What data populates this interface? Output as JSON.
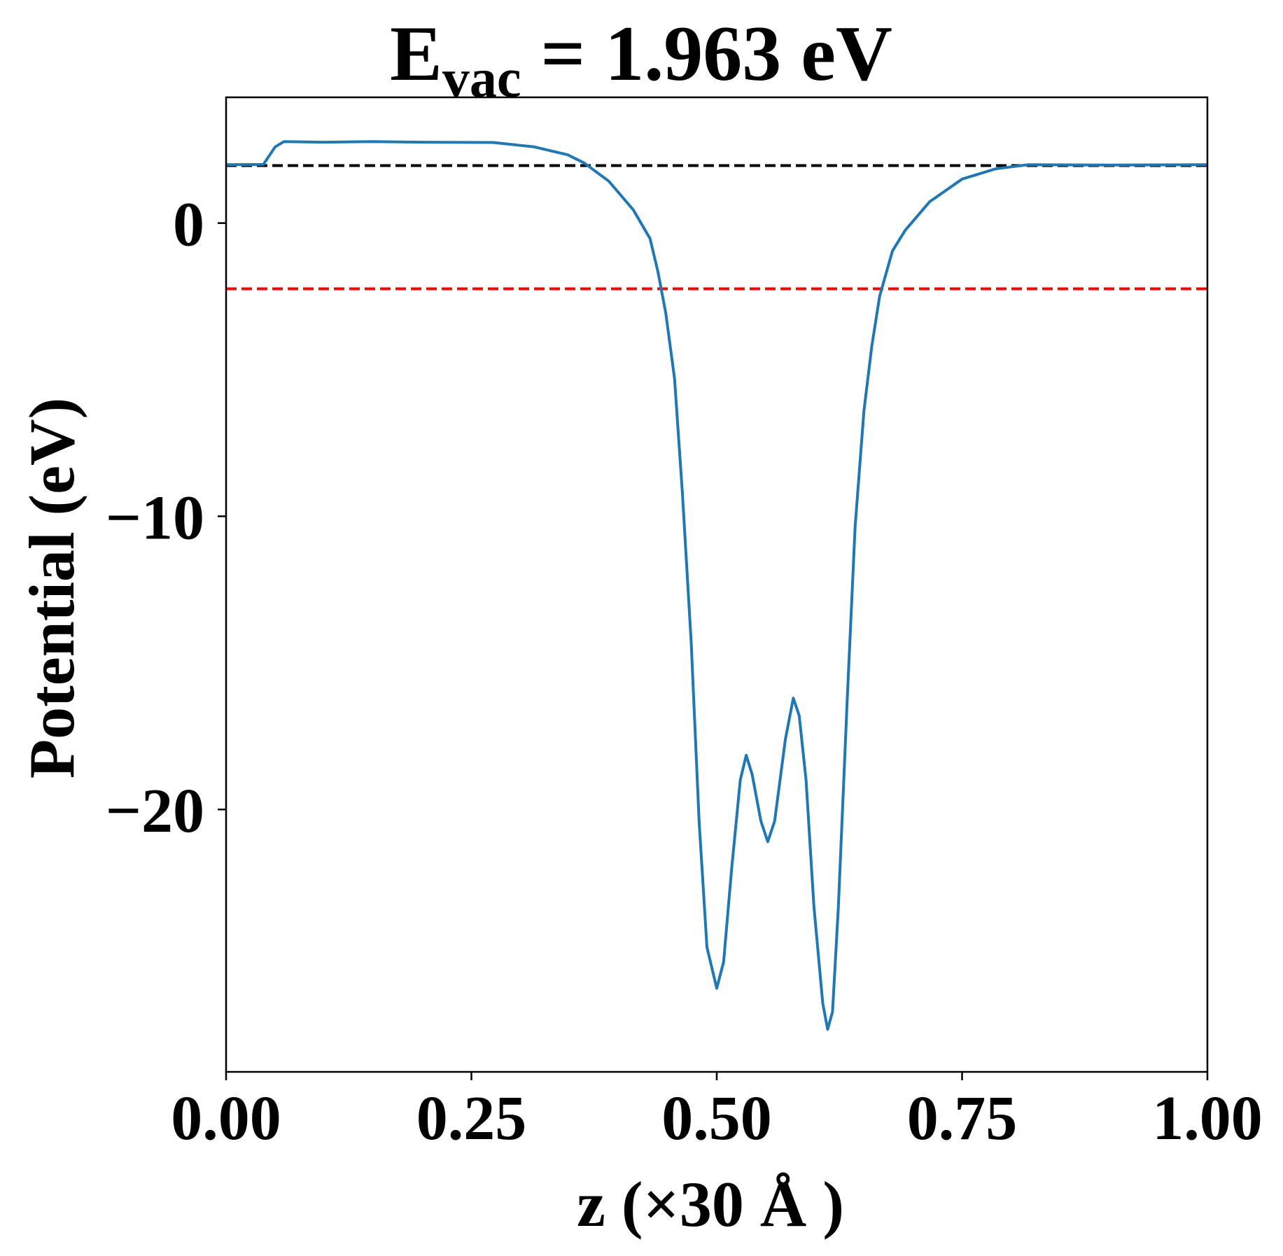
{
  "chart_data": {
    "type": "line",
    "title": {
      "main": "E",
      "subscript": "vac",
      "rest": " = 1.963 eV"
    },
    "xlabel": "z (×30 Å )",
    "ylabel": "Potential (eV)",
    "xlim": [
      0,
      1
    ],
    "ylim": [
      -28.95,
      4.29
    ],
    "xticks": [
      0,
      0.25,
      0.5,
      0.75,
      1.0
    ],
    "xtick_labels": [
      "0.00",
      "0.25",
      "0.50",
      "0.75",
      "1.00"
    ],
    "yticks": [
      0,
      -10,
      -20
    ],
    "ytick_labels": [
      "0",
      "−10",
      "−20"
    ],
    "grid": false,
    "hlines": [
      {
        "y": 1.963,
        "color": "#000000",
        "style": "dashed"
      },
      {
        "y": -2.24,
        "color": "#ff0000",
        "style": "dashed"
      }
    ],
    "series": [
      {
        "color": "#1f77b4",
        "x": [
          0,
          0.038,
          0.05,
          0.059,
          0.1,
          0.15,
          0.2,
          0.272,
          0.314,
          0.348,
          0.365,
          0.39,
          0.415,
          0.432,
          0.44,
          0.448,
          0.457,
          0.465,
          0.474,
          0.482,
          0.49,
          0.5,
          0.507,
          0.515,
          0.524,
          0.53,
          0.536,
          0.545,
          0.552,
          0.559,
          0.57,
          0.578,
          0.584,
          0.591,
          0.599,
          0.608,
          0.613,
          0.618,
          0.624,
          0.633,
          0.641,
          0.65,
          0.658,
          0.666,
          0.679,
          0.692,
          0.717,
          0.75,
          0.784,
          0.817,
          0.9,
          1.0
        ],
        "y": [
          1.99,
          2.0,
          2.6,
          2.78,
          2.76,
          2.78,
          2.76,
          2.75,
          2.6,
          2.33,
          2.05,
          1.43,
          0.45,
          -0.53,
          -1.65,
          -3.06,
          -5.3,
          -9.2,
          -14.3,
          -20.4,
          -24.7,
          -26.1,
          -25.2,
          -22.1,
          -19.0,
          -18.15,
          -18.8,
          -20.4,
          -21.1,
          -20.4,
          -17.6,
          -16.2,
          -16.8,
          -19.0,
          -23.3,
          -26.6,
          -27.5,
          -26.9,
          -23.3,
          -16.2,
          -10.35,
          -6.4,
          -4.2,
          -2.5,
          -0.95,
          -0.25,
          0.73,
          1.5,
          1.85,
          1.99,
          1.98,
          1.99
        ]
      }
    ]
  }
}
